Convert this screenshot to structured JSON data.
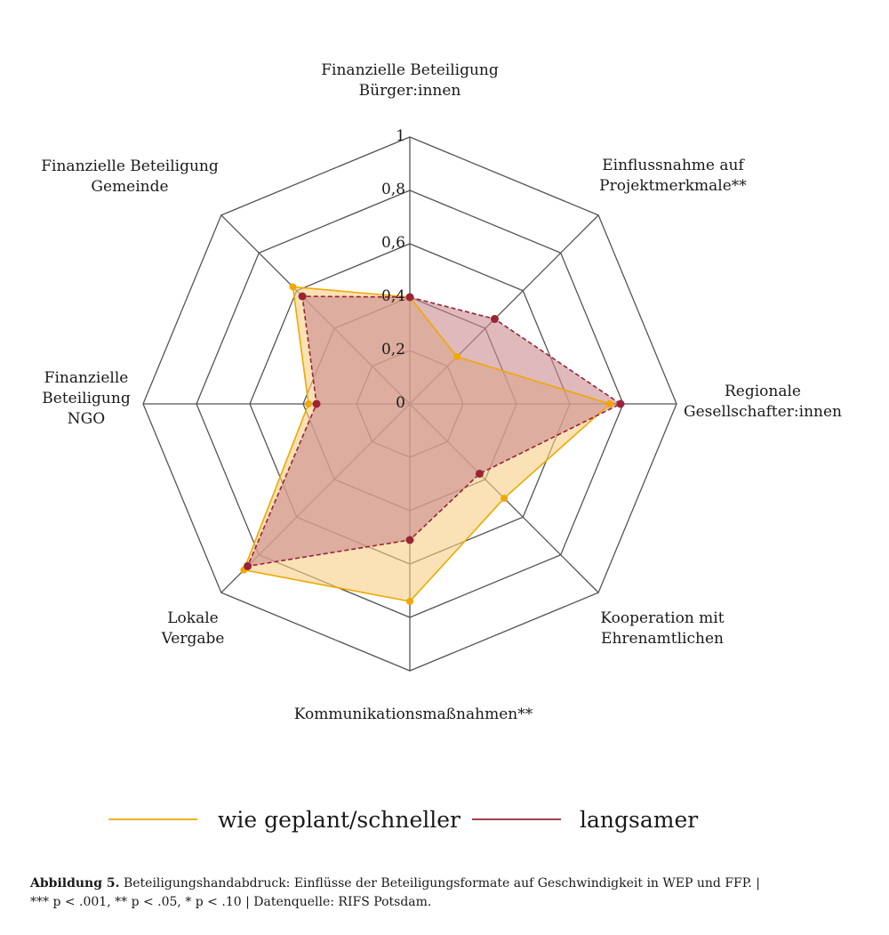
{
  "chart_data": {
    "type": "radar",
    "axes": [
      [
        "Finanzielle Beteiligung",
        "Bürger:innen"
      ],
      [
        "Einflussnahme auf",
        "Projektmerkmale**"
      ],
      [
        "Regionale",
        "Gesellschafter:innen"
      ],
      [
        "Kooperation mit",
        "Ehrenamtlichen"
      ],
      [
        "Kommunikationsmaßnahmen**"
      ],
      [
        "Lokale",
        "Vergabe"
      ],
      [
        "Finanzielle",
        "Beteiligung",
        "NGO"
      ],
      [
        "Finanzielle Beteiligung",
        "Gemeinde"
      ]
    ],
    "rlim": [
      0,
      1
    ],
    "tick_values": [
      0,
      0.2,
      0.4,
      0.6,
      0.8,
      1
    ],
    "tick_labels": [
      "0",
      "0,2",
      "0,4",
      "0,6",
      "0,8",
      "1"
    ],
    "grid_levels": [
      0.2,
      0.4,
      0.6,
      0.8,
      1.0
    ],
    "series": [
      {
        "name": "wie geplant/schneller",
        "values": [
          0.4,
          0.25,
          0.75,
          0.5,
          0.74,
          0.88,
          0.38,
          0.62
        ],
        "color": "#f0a800",
        "fill": "#f6cf86",
        "dashed": false
      },
      {
        "name": "langsamer",
        "values": [
          0.4,
          0.45,
          0.79,
          0.37,
          0.51,
          0.86,
          0.35,
          0.57
        ],
        "color": "#9b2335",
        "fill": "#c98a8f",
        "dashed": true
      }
    ],
    "legend_position": "bottom"
  },
  "caption": {
    "label": "Abbildung 5.",
    "text": "Beteiligungshandabdruck: Einflüsse der Beteiligungsformate auf Geschwindigkeit in WEP und FFP. |",
    "line2": "*** p < .001, ** p < .05, * p < .10 | Datenquelle: RIFS Potsdam."
  }
}
